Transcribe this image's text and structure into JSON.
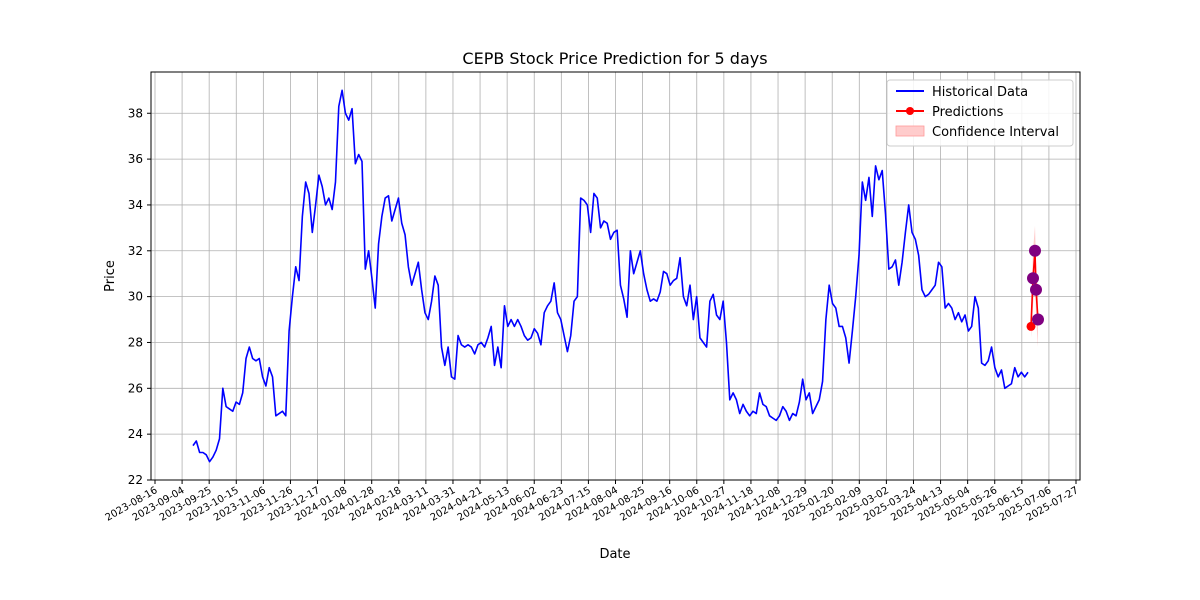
{
  "chart_data": {
    "type": "line",
    "title": "CEPB Stock Price Prediction for 5 days",
    "xlabel": "Date",
    "ylabel": "Price",
    "ylim": [
      22,
      39.8
    ],
    "yticks": [
      22,
      24,
      26,
      28,
      30,
      32,
      34,
      36,
      38
    ],
    "grid": true,
    "legend": {
      "placement": "top-right",
      "entries": [
        "Historical Data",
        "Predictions",
        "Confidence Interval"
      ]
    },
    "colors": {
      "historical": "#0000ff",
      "predictions": "#ff0000",
      "confidence": "#ffb3b3",
      "prediction_marker_dup": "#800080",
      "grid": "#b0b0b0"
    },
    "x_tick_labels": [
      "2023-08-16",
      "2023-09-04",
      "2023-09-25",
      "2023-10-15",
      "2023-11-06",
      "2023-11-26",
      "2023-12-17",
      "2024-01-08",
      "2024-01-28",
      "2024-02-18",
      "2024-03-11",
      "2024-03-31",
      "2024-04-21",
      "2024-05-13",
      "2024-06-02",
      "2024-06-23",
      "2024-07-15",
      "2024-08-04",
      "2024-08-25",
      "2024-09-16",
      "2024-10-06",
      "2024-10-27",
      "2024-11-18",
      "2024-12-08",
      "2024-12-29",
      "2025-01-20",
      "2025-02-09",
      "2025-03-02",
      "2025-03-24",
      "2025-04-13",
      "2025-05-04",
      "2025-05-26",
      "2025-06-15",
      "2025-07-06",
      "2025-07-27"
    ],
    "series": [
      {
        "name": "Historical Data",
        "values": [
          23.5,
          23.7,
          23.2,
          23.2,
          23.1,
          22.8,
          23.0,
          23.3,
          23.8,
          26.0,
          25.2,
          25.1,
          25.0,
          25.4,
          25.3,
          25.8,
          27.3,
          27.8,
          27.3,
          27.2,
          27.3,
          26.5,
          26.1,
          26.9,
          26.5,
          24.8,
          24.9,
          25.0,
          24.8,
          28.5,
          30.0,
          31.3,
          30.7,
          33.5,
          35.0,
          34.5,
          32.8,
          34.0,
          35.3,
          34.8,
          34.0,
          34.3,
          33.8,
          35.0,
          38.3,
          39.0,
          38.0,
          37.7,
          38.2,
          35.8,
          36.2,
          35.9,
          31.2,
          32.0,
          30.8,
          29.5,
          32.3,
          33.5,
          34.3,
          34.4,
          33.3,
          33.8,
          34.3,
          33.2,
          32.7,
          31.3,
          30.5,
          31.0,
          31.5,
          30.3,
          29.3,
          29.0,
          29.8,
          30.9,
          30.5,
          27.8,
          27.0,
          27.8,
          26.5,
          26.4,
          28.3,
          27.9,
          27.8,
          27.9,
          27.8,
          27.5,
          27.9,
          28.0,
          27.8,
          28.2,
          28.7,
          27.0,
          27.8,
          26.9,
          29.6,
          28.7,
          29.0,
          28.7,
          29.0,
          28.7,
          28.3,
          28.1,
          28.2,
          28.6,
          28.4,
          27.9,
          29.3,
          29.6,
          29.8,
          30.6,
          29.3,
          29.0,
          28.3,
          27.6,
          28.3,
          29.8,
          30.0,
          34.3,
          34.2,
          34.0,
          32.8,
          34.5,
          34.3,
          33.0,
          33.3,
          33.2,
          32.5,
          32.8,
          32.9,
          30.5,
          29.9,
          29.1,
          32.0,
          31.0,
          31.5,
          32.0,
          31.0,
          30.3,
          29.8,
          29.9,
          29.8,
          30.2,
          31.1,
          31.0,
          30.5,
          30.7,
          30.8,
          31.7,
          30.0,
          29.6,
          30.5,
          29.0,
          30.0,
          28.2,
          28.0,
          27.8,
          29.8,
          30.1,
          29.2,
          29.0,
          29.8,
          28.0,
          25.5,
          25.8,
          25.5,
          24.9,
          25.3,
          25.0,
          24.8,
          25.0,
          24.9,
          25.8,
          25.3,
          25.2,
          24.8,
          24.7,
          24.6,
          24.8,
          25.2,
          25.0,
          24.6,
          24.9,
          24.8,
          25.4,
          26.4,
          25.5,
          25.8,
          24.9,
          25.2,
          25.5,
          26.3,
          29.0,
          30.5,
          29.7,
          29.5,
          28.7,
          28.7,
          28.2,
          27.1,
          28.5,
          30.0,
          31.8,
          35.0,
          34.2,
          35.2,
          33.5,
          35.7,
          35.1,
          35.5,
          33.6,
          31.2,
          31.3,
          31.6,
          30.5,
          31.5,
          32.8,
          34.0,
          32.8,
          32.5,
          31.8,
          30.3,
          30.0,
          30.1,
          30.3,
          30.5,
          31.5,
          31.3,
          29.5,
          29.7,
          29.5,
          29.0,
          29.3,
          28.9,
          29.2,
          28.5,
          28.7,
          30.0,
          29.5,
          27.1,
          27.0,
          27.2,
          27.8,
          26.9,
          26.5,
          26.8,
          26.0,
          26.1,
          26.2,
          26.9,
          26.5,
          26.7,
          26.5,
          26.7
        ]
      },
      {
        "name": "Predictions",
        "values": [
          28.7,
          30.8,
          32.0,
          30.3,
          29.0
        ]
      }
    ],
    "confidence_interval": {
      "name": "Confidence Interval",
      "lower": [
        28.2,
        29.6,
        30.9,
        29.1,
        27.8
      ],
      "upper": [
        29.2,
        32.0,
        33.1,
        31.5,
        30.2
      ]
    }
  }
}
